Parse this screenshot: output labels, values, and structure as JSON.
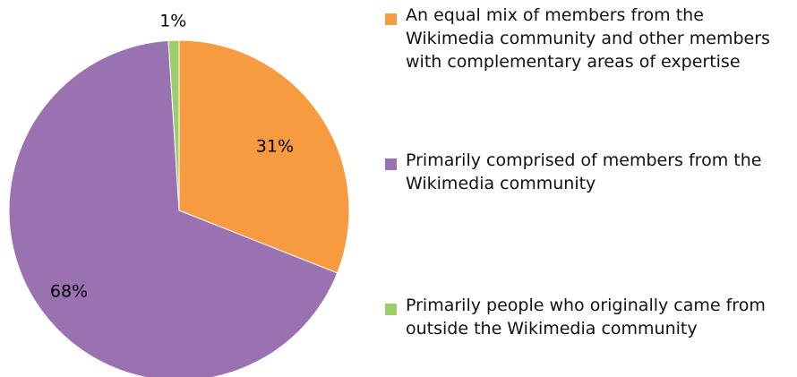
{
  "chart_data": {
    "type": "pie",
    "title": "",
    "slices": [
      {
        "label": "An equal mix of members from the Wikimedia community and other members with complementary areas of expertise",
        "value": 31,
        "display": "31%",
        "color": "#f79b41"
      },
      {
        "label": "Primarily comprised of members from the Wikimedia community",
        "value": 68,
        "display": "68%",
        "color": "#9a72b2"
      },
      {
        "label": "Primarily people who originally came from outside the Wikimedia community",
        "value": 1,
        "display": "1%",
        "color": "#9bcd6c"
      }
    ],
    "legend_position": "right",
    "start_angle": "top (12 o'clock), clockwise"
  }
}
